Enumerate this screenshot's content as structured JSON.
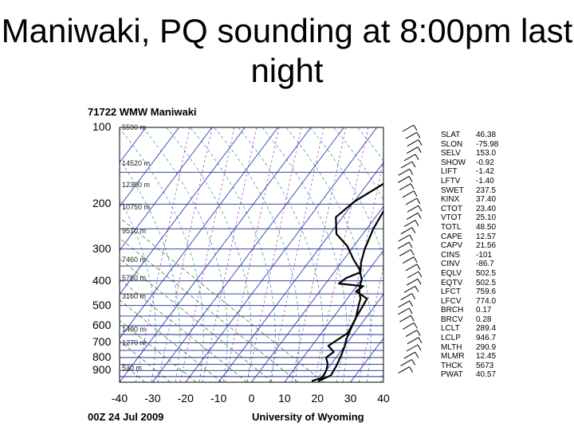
{
  "slide": {
    "title": "Maniwaki, PQ sounding at 8:00pm last night"
  },
  "chart_data": {
    "type": "line",
    "title": "71722 WMW Maniwaki",
    "footer_left": "00Z 24 Jul 2009",
    "footer_right": "University of Wyoming",
    "x_ticks": [
      "-40",
      "-30",
      "-20",
      "-10",
      "0",
      "10",
      "20",
      "30",
      "40"
    ],
    "xlim": [
      -40,
      40
    ],
    "y_scale": "log-pressure",
    "ylim": [
      1000,
      100
    ],
    "pressure_levels": [
      "100",
      "200",
      "300",
      "400",
      "500",
      "600",
      "700",
      "800",
      "900"
    ],
    "height_labels": [
      "5590 m",
      "14520 m",
      "12300 m",
      "10750 m",
      "9510 m",
      "7460 m",
      "5780 m",
      "3160 m",
      "1490 m",
      "1270 m",
      "530 m"
    ],
    "series": [
      {
        "role": "temperature",
        "color": "#000000",
        "points": [
          [
            6,
            100
          ],
          [
            2,
            116
          ],
          [
            -1,
            140
          ],
          [
            -4,
            160
          ],
          [
            -10,
            196
          ],
          [
            -12,
            225
          ],
          [
            -8,
            262
          ],
          [
            -2,
            292
          ],
          [
            3,
            330
          ],
          [
            7,
            360
          ],
          [
            10,
            395
          ],
          [
            11,
            420
          ],
          [
            12,
            440
          ],
          [
            14,
            470
          ],
          [
            15,
            500
          ],
          [
            17,
            560
          ],
          [
            18,
            620
          ],
          [
            19,
            680
          ],
          [
            20,
            720
          ],
          [
            21,
            780
          ],
          [
            22,
            860
          ],
          [
            22.5,
            940
          ],
          [
            20,
            990
          ]
        ]
      },
      {
        "role": "dewpoint",
        "color": "#000000",
        "points": [
          [
            26,
            100
          ],
          [
            20,
            122
          ],
          [
            15,
            155
          ],
          [
            2,
            190
          ],
          [
            1,
            210
          ],
          [
            2,
            250
          ],
          [
            4,
            300
          ],
          [
            6,
            340
          ],
          [
            8,
            370
          ],
          [
            5,
            390
          ],
          [
            4,
            410
          ],
          [
            12,
            420
          ],
          [
            11,
            440
          ],
          [
            16,
            470
          ],
          [
            17,
            560
          ],
          [
            18,
            640
          ],
          [
            15,
            720
          ],
          [
            18,
            760
          ],
          [
            17,
            800
          ],
          [
            19,
            850
          ],
          [
            20,
            900
          ],
          [
            20.5,
            960
          ],
          [
            18,
            990
          ]
        ]
      }
    ],
    "indices": [
      {
        "name": "SLAT",
        "value": "46.38"
      },
      {
        "name": "SLON",
        "value": "-75.98"
      },
      {
        "name": "SELV",
        "value": "153.0"
      },
      {
        "name": "SHOW",
        "value": "-0.92"
      },
      {
        "name": "LIFT",
        "value": "-1.42"
      },
      {
        "name": "LFTV",
        "value": "-1.40"
      },
      {
        "name": "SWET",
        "value": "237.5"
      },
      {
        "name": "KINX",
        "value": "37.40"
      },
      {
        "name": "CTOT",
        "value": "23.40"
      },
      {
        "name": "VTOT",
        "value": "25.10"
      },
      {
        "name": "TOTL",
        "value": "48.50"
      },
      {
        "name": "CAPE",
        "value": "12.57"
      },
      {
        "name": "CAPV",
        "value": "21.56"
      },
      {
        "name": "CINS",
        "value": "-101"
      },
      {
        "name": "CINV",
        "value": "-86.7"
      },
      {
        "name": "EQLV",
        "value": "502.5"
      },
      {
        "name": "EQTV",
        "value": "502.5"
      },
      {
        "name": "LFCT",
        "value": "759.6"
      },
      {
        "name": "LFCV",
        "value": "774.0"
      },
      {
        "name": "BRCH",
        "value": "0.17"
      },
      {
        "name": "BRCV",
        "value": "0.28"
      },
      {
        "name": "LCLT",
        "value": "289.4"
      },
      {
        "name": "LCLP",
        "value": "946.7"
      },
      {
        "name": "MLTH",
        "value": "290.9"
      },
      {
        "name": "MLMR",
        "value": "12.45"
      },
      {
        "name": "THCK",
        "value": "5673"
      },
      {
        "name": "PWAT",
        "value": "40.57"
      }
    ],
    "grid": true
  }
}
